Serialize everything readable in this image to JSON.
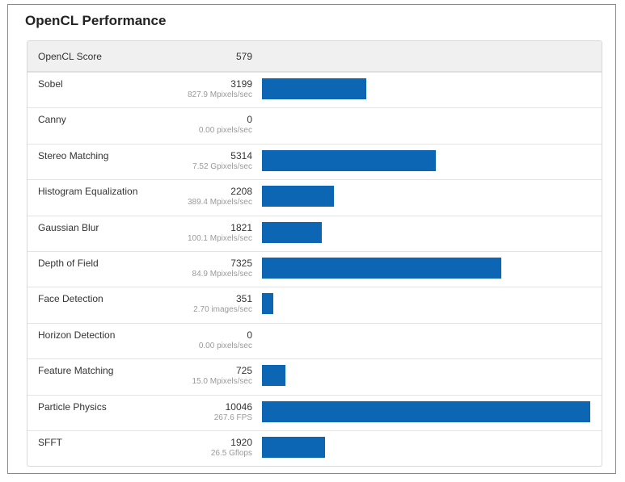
{
  "title": "OpenCL Performance",
  "header": {
    "label": "OpenCL Score",
    "score": "579"
  },
  "colors": {
    "bar": "#0d66b3"
  },
  "max_score": 10046,
  "rows": [
    {
      "label": "Sobel",
      "score": "3199",
      "rate": "827.9 Mpixels/sec",
      "value": 3199
    },
    {
      "label": "Canny",
      "score": "0",
      "rate": "0.00 pixels/sec",
      "value": 0
    },
    {
      "label": "Stereo Matching",
      "score": "5314",
      "rate": "7.52 Gpixels/sec",
      "value": 5314
    },
    {
      "label": "Histogram Equalization",
      "score": "2208",
      "rate": "389.4 Mpixels/sec",
      "value": 2208
    },
    {
      "label": "Gaussian Blur",
      "score": "1821",
      "rate": "100.1 Mpixels/sec",
      "value": 1821
    },
    {
      "label": "Depth of Field",
      "score": "7325",
      "rate": "84.9 Mpixels/sec",
      "value": 7325
    },
    {
      "label": "Face Detection",
      "score": "351",
      "rate": "2.70 images/sec",
      "value": 351
    },
    {
      "label": "Horizon Detection",
      "score": "0",
      "rate": "0.00 pixels/sec",
      "value": 0
    },
    {
      "label": "Feature Matching",
      "score": "725",
      "rate": "15.0 Mpixels/sec",
      "value": 725
    },
    {
      "label": "Particle Physics",
      "score": "10046",
      "rate": "267.6 FPS",
      "value": 10046
    },
    {
      "label": "SFFT",
      "score": "1920",
      "rate": "26.5 Gflops",
      "value": 1920
    }
  ]
}
